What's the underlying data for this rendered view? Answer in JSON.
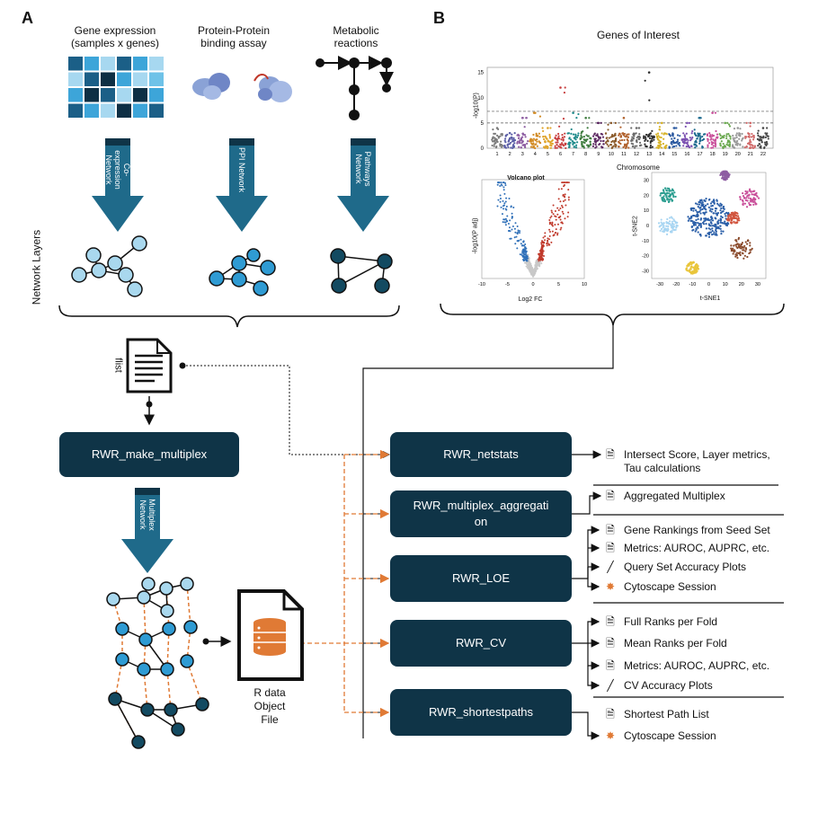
{
  "panels": {
    "a": "A",
    "b": "B"
  },
  "sources": {
    "gene_expression": "Gene expression\n(samples x genes)",
    "ppi": "Protein-Protein\nbinding assay",
    "metabolic": "Metabolic\nreactions"
  },
  "arrow_labels": {
    "coexpression": "Co-\nexpression\nNetwork",
    "ppi": "PPI Network",
    "pathways": "Pathways\nNetwork",
    "multiplex": "Multiplex\nNetwork"
  },
  "network_layers_label": "Network Layers",
  "flist_label": "flist",
  "rdata_label": "R data\nObject\nFile",
  "functions": {
    "make_multiplex": "RWR_make_multiplex",
    "netstats": "RWR_netstats",
    "multiplex_aggregation": "RWR_multiplex_aggregati\non",
    "loe": "RWR_LOE",
    "cv": "RWR_CV",
    "shortestpaths": "RWR_shortestpaths"
  },
  "outputs": {
    "netstats": [
      {
        "icon": "document-icon",
        "text": "Intersect Score, Layer metrics,\nTau calculations"
      }
    ],
    "aggregation": [
      {
        "icon": "document-icon",
        "text": "Aggregated Multiplex"
      }
    ],
    "loe": [
      {
        "icon": "document-icon",
        "text": "Gene Rankings from Seed Set"
      },
      {
        "icon": "document-icon",
        "text": "Metrics: AUROC, AUPRC, etc."
      },
      {
        "icon": "plot-icon",
        "text": "Query Set Accuracy Plots"
      },
      {
        "icon": "cytoscape-icon",
        "text": "Cytoscape Session"
      }
    ],
    "cv": [
      {
        "icon": "document-icon",
        "text": "Full Ranks per Fold"
      },
      {
        "icon": "document-icon",
        "text": "Mean Ranks per Fold"
      },
      {
        "icon": "document-icon",
        "text": "Metrics: AUROC, AUPRC, etc."
      },
      {
        "icon": "plot-icon",
        "text": "CV Accuracy Plots"
      }
    ],
    "shortestpaths": [
      {
        "icon": "document-icon",
        "text": "Shortest Path List"
      },
      {
        "icon": "cytoscape-icon",
        "text": "Cytoscape Session"
      }
    ]
  },
  "panel_b": {
    "manhattan": {
      "title": "Genes of Interest",
      "ylabel": "-log10(P)",
      "xlabel": "Chromosome",
      "yticks": [
        "0",
        "5",
        "10",
        "15"
      ],
      "chromosomes": [
        "1",
        "2",
        "3",
        "4",
        "5",
        "6",
        "7",
        "8",
        "9",
        "10",
        "11",
        "12",
        "13",
        "14",
        "15",
        "16",
        "17",
        "18",
        "19",
        "20",
        "21",
        "22"
      ],
      "colors": [
        "#7a7a7a",
        "#5b5ea6",
        "#8e5ea2",
        "#d28b25",
        "#e0a42a",
        "#c73e3e",
        "#1f8a8a",
        "#3e7c3e",
        "#5d2a63",
        "#8a5a2b",
        "#b0602b",
        "#6b6b6b",
        "#2b2b2b",
        "#d7b329",
        "#2c5aa0",
        "#7a4fb0",
        "#1e6b8f",
        "#c94f9a",
        "#6aa84f",
        "#999999",
        "#d06a6a",
        "#444444"
      ],
      "peaks": [
        4,
        3,
        6,
        7,
        4,
        12,
        7,
        6,
        5,
        5,
        6,
        4,
        15,
        5,
        4,
        5,
        6,
        7,
        5,
        4,
        5,
        4
      ],
      "threshold": 7.3,
      "suggestive": 5
    },
    "volcano": {
      "title": "Volcano plot",
      "xlabel": "Log2 FC",
      "ylabel": "-log10(P adj)",
      "xticks": [
        "-10",
        "-5",
        "0",
        "5",
        "10"
      ],
      "colors": {
        "down": "#2e6fb8",
        "up": "#c0392b",
        "ns": "#c8c8c8"
      }
    },
    "tsne": {
      "xlabel": "t-SNE1",
      "ylabel": "t-SNE2",
      "xticks": [
        "-30",
        "-20",
        "-10",
        "0",
        "10",
        "20",
        "30"
      ],
      "yticks": [
        "30",
        "20",
        "10",
        "0",
        "-10",
        "-20",
        "-30"
      ],
      "cluster_colors": [
        "#2a9d8f",
        "#a8d5f2",
        "#2b5fa8",
        "#8e5ea2",
        "#c94f9a",
        "#d1553e",
        "#8a4a2b",
        "#e9c53a"
      ]
    }
  },
  "colors": {
    "dark_navy": "#0f3447",
    "arrow_blue": "#1f6a8a",
    "node_light": "#a9d8ee",
    "node_mid": "#2f9bd3",
    "node_dark": "#134a61",
    "orange": "#e07a35",
    "heatmap": [
      "#1b5f87",
      "#3da5d9",
      "#a7d8f0",
      "#0e2f44",
      "#6ec2e8"
    ]
  }
}
